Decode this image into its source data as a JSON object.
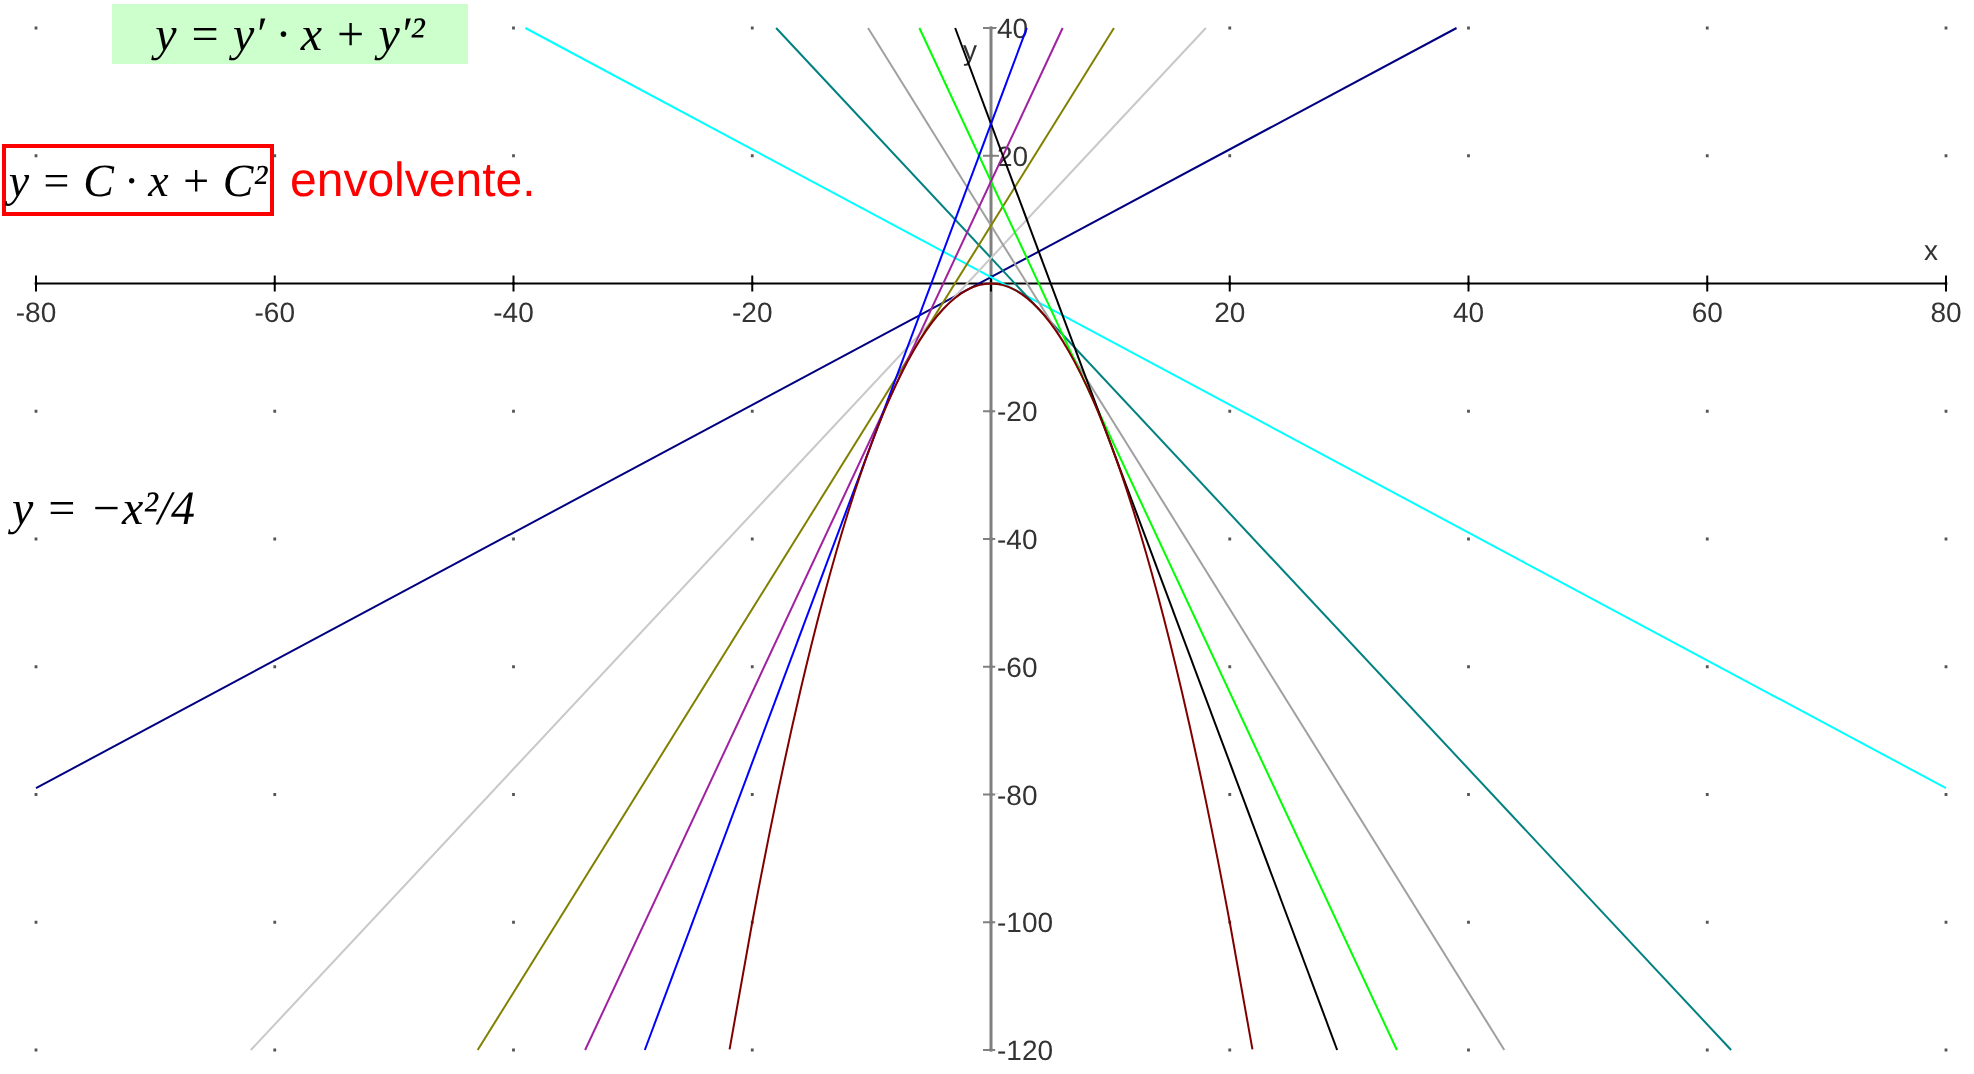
{
  "chart_data": {
    "type": "line",
    "xlabel": "x",
    "ylabel": "y",
    "xlim": [
      -80,
      80
    ],
    "ylim": [
      -120,
      40
    ],
    "xticks": [
      -80,
      -60,
      -40,
      -20,
      {
        "value": 0,
        "label": null
      },
      20,
      40,
      60,
      80
    ],
    "yticks": [
      -120,
      -100,
      -80,
      -60,
      -40,
      -20,
      {
        "value": 0,
        "label": null
      },
      20,
      40
    ],
    "grid": true,
    "marker": "none",
    "line_style": "solid",
    "annotations": [
      "y = y′ · x + y′²",
      "y = C · x + C²",
      "envolvente.",
      "y = −x²/4"
    ],
    "series": [
      {
        "color": "#000080",
        "x": [
          -80,
          39
        ],
        "values": [
          -79,
          40
        ]
      },
      {
        "color": "#00ffff",
        "x": [
          -39,
          80
        ],
        "values": [
          40,
          -79
        ]
      },
      {
        "color": "#008080",
        "x": [
          -18,
          62
        ],
        "values": [
          40,
          -120
        ]
      },
      {
        "color": "#c8c8c8",
        "x": [
          -62,
          18
        ],
        "values": [
          -120,
          40
        ]
      },
      {
        "color": "#a0a0a0",
        "x": [
          -10.3,
          43
        ],
        "values": [
          40,
          -120
        ]
      },
      {
        "color": "#808000",
        "x": [
          -43,
          10.3
        ],
        "values": [
          -120,
          40
        ]
      },
      {
        "color": "#00ff00",
        "x": [
          -6,
          34
        ],
        "values": [
          40,
          -120
        ]
      },
      {
        "color": "#a020a0",
        "x": [
          -34,
          6
        ],
        "values": [
          -120,
          40
        ]
      },
      {
        "color": "#000000",
        "x": [
          -3,
          29
        ],
        "values": [
          40,
          -120
        ]
      },
      {
        "color": "#0000ff",
        "x": [
          -29,
          3
        ],
        "values": [
          -120,
          40
        ]
      },
      {
        "color": "#800000",
        "x": [
          -21.9,
          -20,
          -18,
          -16,
          -14,
          -12,
          -10,
          -8,
          -6,
          -4,
          -2,
          0,
          2,
          4,
          6,
          8,
          10,
          12,
          14,
          16,
          18,
          20,
          21.9
        ],
        "values": [
          -119.9,
          -100,
          -81,
          -64,
          -49,
          -36,
          -25,
          -16,
          -9,
          -4,
          -1,
          0,
          -1,
          -4,
          -9,
          -16,
          -25,
          -36,
          -49,
          -64,
          -81,
          -100,
          -119.9
        ]
      }
    ]
  }
}
